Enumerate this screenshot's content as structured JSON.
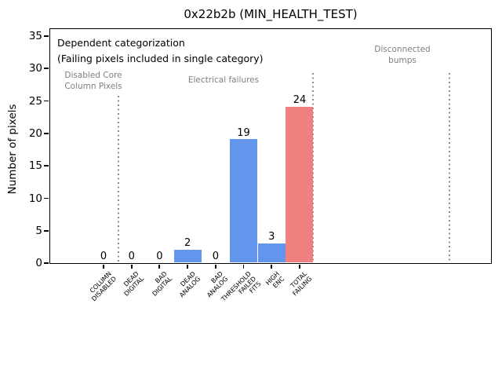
{
  "chart_data": {
    "type": "bar",
    "title": "0x22b2b (MIN_HEALTH_TEST)",
    "xlabel": "",
    "ylabel": "Number of pixels",
    "ylim": [
      0,
      35
    ],
    "yticks": [
      0,
      5,
      10,
      15,
      20,
      25,
      30,
      35
    ],
    "grid": false,
    "legend": "none",
    "categories": [
      "COLUMN\nDISABLED",
      "DEAD\nDIGITAL",
      "BAD\nDIGITAL",
      "DEAD\nANALOG",
      "BAD\nANALOG",
      "THRESHOLD\nFAILED\nFITS",
      "HIGH\nENC",
      "TOTAL\nFAILING"
    ],
    "values": [
      0,
      0,
      0,
      2,
      0,
      19,
      3,
      24
    ],
    "value_labels": [
      "0",
      "0",
      "0",
      "2",
      "0",
      "19",
      "3",
      "24"
    ],
    "bar_colors": [
      "#6495ED",
      "#6495ED",
      "#6495ED",
      "#6495ED",
      "#6495ED",
      "#6495ED",
      "#6495ED",
      "#F08080"
    ],
    "annotation_title": "Dependent categorization",
    "annotation_subtitle": "(Failing pixels included in single category)",
    "region_labels": [
      "Disabled Core\nColumn Pixels",
      "Electrical failures",
      "Disconnected\nbumps"
    ],
    "colors": {
      "bar_blue": "#6495ED",
      "bar_red": "#F08080",
      "region_text": "#7f7f7f",
      "separator": "#8c8c8c",
      "axis": "#000000",
      "background": "#ffffff"
    }
  }
}
